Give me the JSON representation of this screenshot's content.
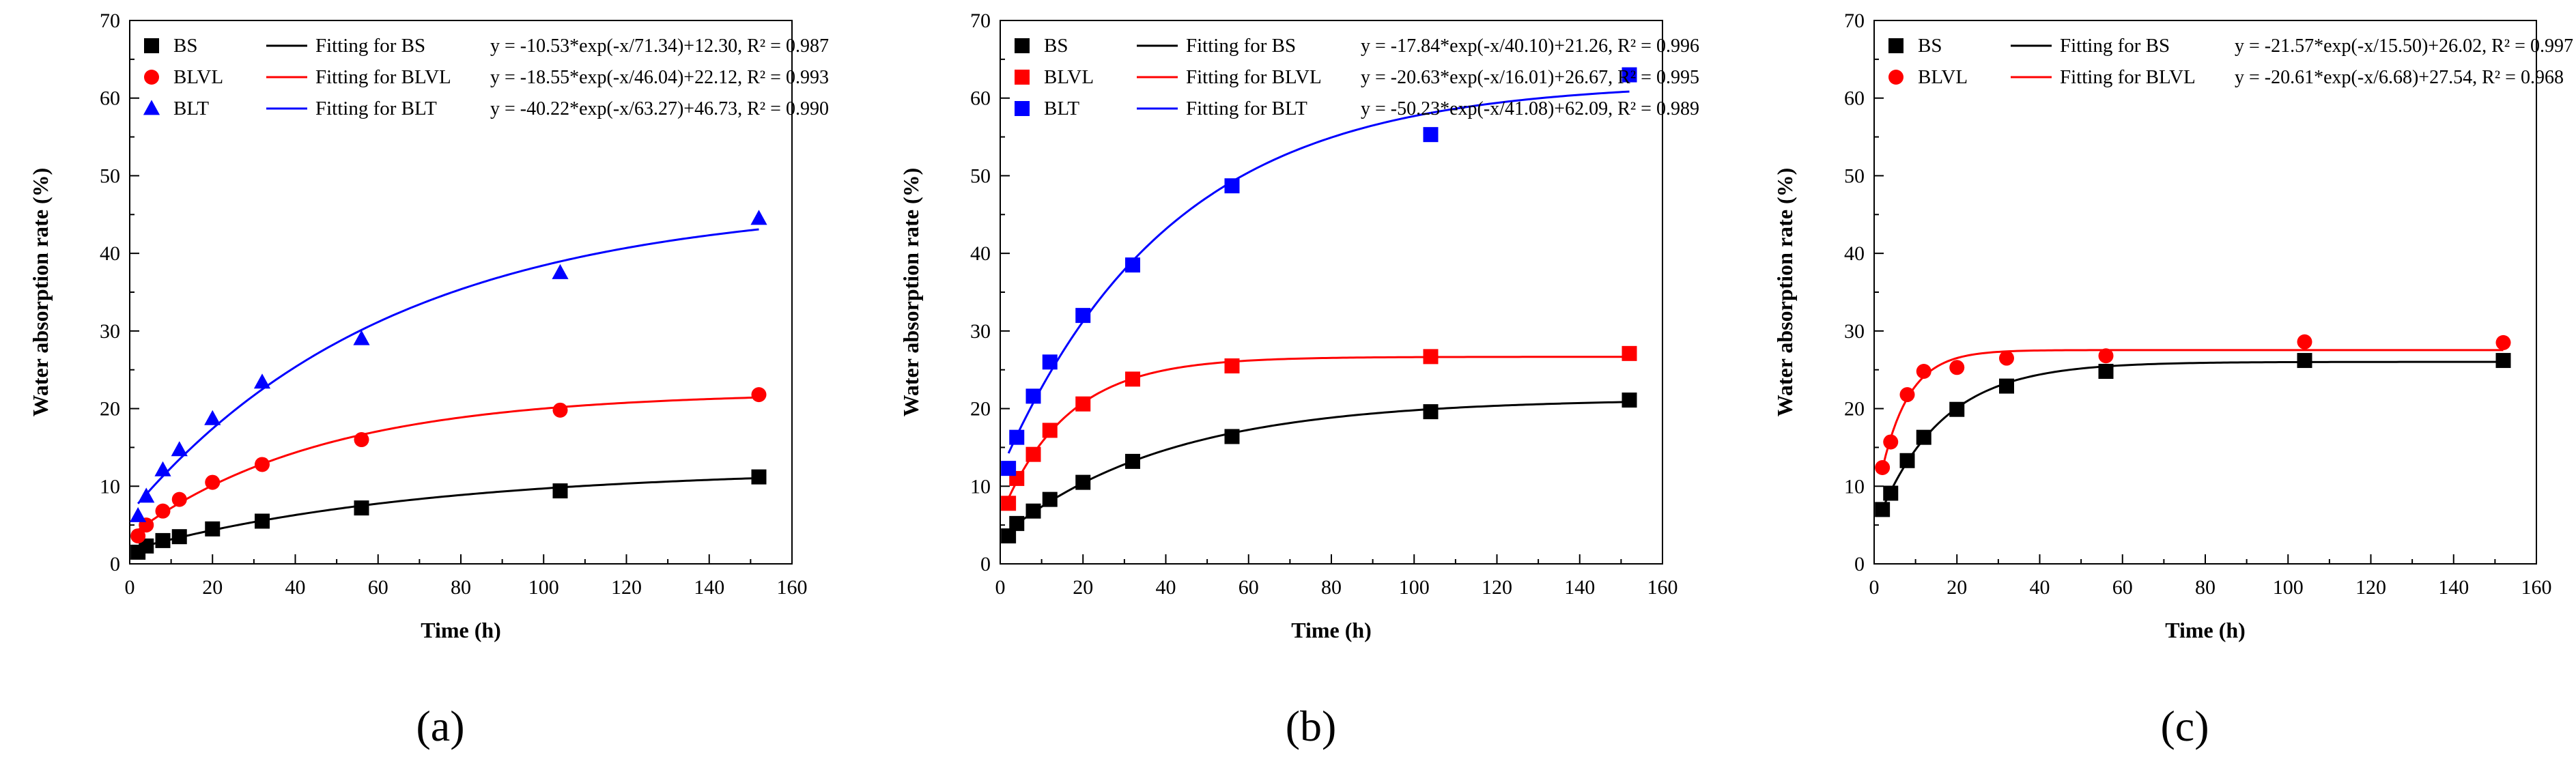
{
  "figure": {
    "panel_labels": [
      "(a)",
      "(b)",
      "(c)"
    ]
  },
  "chart_data": [
    {
      "type": "scatter",
      "panel": "(a)",
      "xlabel": "Time (h)",
      "ylabel": "Water absorption rate (%)",
      "xlim": [
        0,
        160
      ],
      "ylim": [
        0,
        70
      ],
      "xticks": [
        0,
        20,
        40,
        60,
        80,
        100,
        120,
        140,
        160
      ],
      "yticks": [
        0,
        10,
        20,
        30,
        40,
        50,
        60,
        70
      ],
      "legend_position": "top-left",
      "series": [
        {
          "name": "BS",
          "fit_name": "Fitting for BS",
          "equation": "y = -10.53*exp(-x/71.34)+12.30, R² = 0.987",
          "color": "#000000",
          "marker": "square",
          "fit": {
            "a": -10.53,
            "t": 71.34,
            "c": 12.3
          },
          "x": [
            2,
            4,
            8,
            12,
            20,
            32,
            56,
            104,
            152
          ],
          "y": [
            1.5,
            2.3,
            3.0,
            3.5,
            4.5,
            5.5,
            7.2,
            9.4,
            11.2
          ]
        },
        {
          "name": "BLVL",
          "fit_name": "Fitting for BLVL",
          "equation": "y = -18.55*exp(-x/46.04)+22.12, R² = 0.993",
          "color": "#ff0000",
          "marker": "circle",
          "fit": {
            "a": -18.55,
            "t": 46.04,
            "c": 22.12
          },
          "x": [
            2,
            4,
            8,
            12,
            20,
            32,
            56,
            104,
            152
          ],
          "y": [
            3.6,
            5.0,
            6.8,
            8.3,
            10.5,
            12.8,
            16.0,
            19.8,
            21.8
          ]
        },
        {
          "name": "BLT",
          "fit_name": "Fitting for BLT",
          "equation": "y = -40.22*exp(-x/63.27)+46.73, R² = 0.990",
          "color": "#0000ff",
          "marker": "triangle",
          "fit": {
            "a": -40.22,
            "t": 63.27,
            "c": 46.73
          },
          "x": [
            2,
            4,
            8,
            12,
            20,
            32,
            56,
            104,
            152
          ],
          "y": [
            6.2,
            8.7,
            12.1,
            14.7,
            18.7,
            23.4,
            29.0,
            37.5,
            44.5
          ]
        }
      ]
    },
    {
      "type": "scatter",
      "panel": "(b)",
      "xlabel": "Time (h)",
      "ylabel": "Water absorption rate (%)",
      "xlim": [
        0,
        160
      ],
      "ylim": [
        0,
        70
      ],
      "xticks": [
        0,
        20,
        40,
        60,
        80,
        100,
        120,
        140,
        160
      ],
      "yticks": [
        0,
        10,
        20,
        30,
        40,
        50,
        60,
        70
      ],
      "legend_position": "top-left",
      "series": [
        {
          "name": "BS",
          "fit_name": "Fitting for BS",
          "equation": "y = -17.84*exp(-x/40.10)+21.26, R² = 0.996",
          "color": "#000000",
          "marker": "square",
          "fit": {
            "a": -17.84,
            "t": 40.1,
            "c": 21.26
          },
          "x": [
            2,
            4,
            8,
            12,
            20,
            32,
            56,
            104,
            152
          ],
          "y": [
            3.6,
            5.2,
            6.8,
            8.3,
            10.5,
            13.2,
            16.4,
            19.6,
            21.1
          ]
        },
        {
          "name": "BLVL",
          "fit_name": "Fitting for BLVL",
          "equation": "y = -20.63*exp(-x/16.01)+26.67, R² = 0.995",
          "color": "#ff0000",
          "marker": "square",
          "fit": {
            "a": -20.63,
            "t": 16.01,
            "c": 26.67
          },
          "x": [
            2,
            4,
            8,
            12,
            20,
            32,
            56,
            104,
            152
          ],
          "y": [
            7.8,
            11.0,
            14.1,
            17.2,
            20.6,
            23.8,
            25.5,
            26.7,
            27.1
          ]
        },
        {
          "name": "BLT",
          "fit_name": "Fitting for BLT",
          "equation": "y = -50.23*exp(-x/41.08)+62.09, R² = 0.989",
          "color": "#0000ff",
          "marker": "square",
          "fit": {
            "a": -50.23,
            "t": 41.08,
            "c": 62.09
          },
          "x": [
            2,
            4,
            8,
            12,
            20,
            32,
            56,
            104,
            152
          ],
          "y": [
            12.3,
            16.3,
            21.6,
            26.0,
            32.0,
            38.5,
            48.7,
            55.3,
            63.0
          ]
        }
      ]
    },
    {
      "type": "scatter",
      "panel": "(c)",
      "xlabel": "Time (h)",
      "ylabel": "Water absorption rate (%)",
      "xlim": [
        0,
        160
      ],
      "ylim": [
        0,
        70
      ],
      "xticks": [
        0,
        20,
        40,
        60,
        80,
        100,
        120,
        140,
        160
      ],
      "yticks": [
        0,
        10,
        20,
        30,
        40,
        50,
        60,
        70
      ],
      "legend_position": "top-left",
      "series": [
        {
          "name": "BS",
          "fit_name": "Fitting for BS",
          "equation": "y = -21.57*exp(-x/15.50)+26.02, R² = 0.997",
          "color": "#000000",
          "marker": "square",
          "fit": {
            "a": -21.57,
            "t": 15.5,
            "c": 26.02
          },
          "x": [
            2,
            4,
            8,
            12,
            20,
            32,
            56,
            104,
            152
          ],
          "y": [
            7.0,
            9.1,
            13.3,
            16.3,
            19.9,
            22.9,
            24.8,
            26.2,
            26.2
          ]
        },
        {
          "name": "BLVL",
          "fit_name": "Fitting for BLVL",
          "equation": "y = -20.61*exp(-x/6.68)+27.54,  R² = 0.968",
          "color": "#ff0000",
          "marker": "circle",
          "fit": {
            "a": -20.61,
            "t": 6.68,
            "c": 27.54
          },
          "x": [
            2,
            4,
            8,
            12,
            20,
            32,
            56,
            104,
            152
          ],
          "y": [
            12.4,
            15.7,
            21.8,
            24.8,
            25.3,
            26.5,
            26.8,
            28.6,
            28.5
          ]
        }
      ]
    }
  ]
}
